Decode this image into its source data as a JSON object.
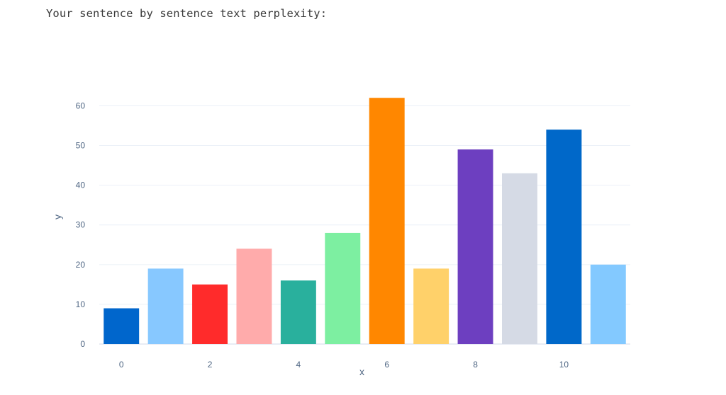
{
  "heading": "Your sentence by sentence text perplexity:",
  "chart_data": {
    "type": "bar",
    "title": "",
    "xlabel": "x",
    "ylabel": "y",
    "x": [
      0,
      1,
      2,
      3,
      4,
      5,
      6,
      7,
      8,
      9,
      10,
      11
    ],
    "values": [
      9,
      19,
      15,
      24,
      16,
      28,
      62,
      19,
      49,
      43,
      54,
      20
    ],
    "colors": [
      "#0066cc",
      "#87c8ff",
      "#ff2b2b",
      "#ffabab",
      "#29b09d",
      "#7defa1",
      "#ff8700",
      "#ffd16a",
      "#6d3fc0",
      "#d5dae5",
      "#0068c9",
      "#83c9ff"
    ],
    "ylim": [
      0,
      64
    ],
    "yticks": [
      0,
      10,
      20,
      30,
      40,
      50,
      60
    ],
    "xticks": [
      0,
      2,
      4,
      6,
      8,
      10
    ],
    "grid": true,
    "legend": "none"
  }
}
